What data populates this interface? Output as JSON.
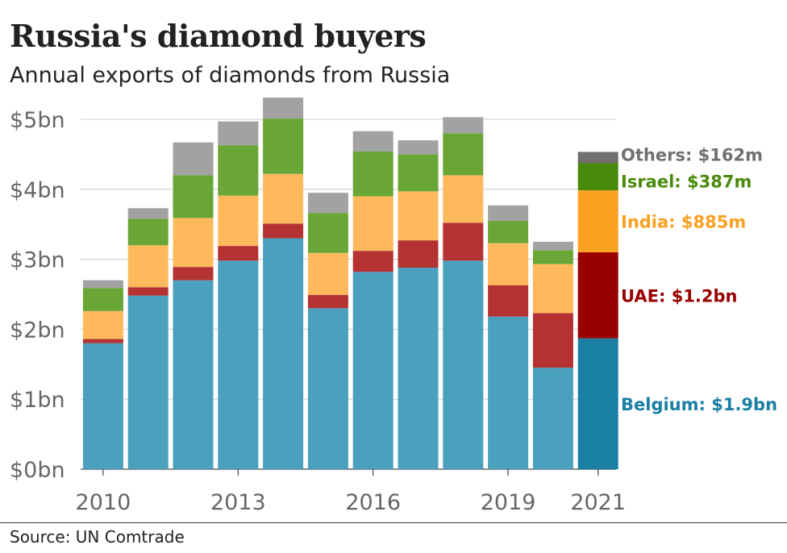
{
  "title": "Russia's diamond buyers",
  "subtitle": "Annual exports of diamonds from Russia",
  "source": "Source: UN Comtrade",
  "colors": {
    "Belgium": "#4aa0bd",
    "UAE": "#b43232",
    "India": "#fdb95c",
    "Israel": "#6aa636",
    "Others": "#a2a2a2",
    "Belgium_2021": "#1a7fa5",
    "UAE_2021": "#990000",
    "India_2021": "#fba122",
    "Israel_2021": "#4a8a0a",
    "Others_2021": "#707070"
  },
  "chart_data": {
    "type": "bar",
    "stacked": true,
    "unit": "$bn",
    "categories": [
      "2010",
      "2011",
      "2012",
      "2013",
      "2014",
      "2015",
      "2016",
      "2017",
      "2018",
      "2019",
      "2020",
      "2021"
    ],
    "xtick_labels": [
      "2010",
      "2013",
      "2016",
      "2019",
      "2021"
    ],
    "ytick_labels": [
      "$0bn",
      "$1bn",
      "$2bn",
      "$3bn",
      "$4bn",
      "$5bn"
    ],
    "yticks": [
      0,
      1,
      2,
      3,
      4,
      5
    ],
    "ylim": [
      0,
      5.3
    ],
    "grid": true,
    "legend": "direct labels right of final bar",
    "series": [
      {
        "name": "Belgium",
        "values": [
          1.8,
          2.48,
          2.7,
          2.98,
          3.3,
          2.3,
          2.82,
          2.88,
          2.98,
          2.18,
          1.45,
          1.87
        ]
      },
      {
        "name": "UAE",
        "values": [
          0.06,
          0.12,
          0.19,
          0.21,
          0.21,
          0.19,
          0.3,
          0.39,
          0.54,
          0.45,
          0.78,
          1.23
        ]
      },
      {
        "name": "India",
        "values": [
          0.4,
          0.6,
          0.7,
          0.72,
          0.71,
          0.6,
          0.78,
          0.7,
          0.68,
          0.6,
          0.7,
          0.885
        ]
      },
      {
        "name": "Israel",
        "values": [
          0.33,
          0.38,
          0.61,
          0.72,
          0.79,
          0.57,
          0.64,
          0.53,
          0.6,
          0.32,
          0.2,
          0.387
        ]
      },
      {
        "name": "Others",
        "values": [
          0.11,
          0.15,
          0.47,
          0.34,
          0.3,
          0.29,
          0.29,
          0.2,
          0.23,
          0.22,
          0.12,
          0.162
        ]
      }
    ],
    "annotations": [
      {
        "series": "Others",
        "text": "Others: $162m"
      },
      {
        "series": "Israel",
        "text": "Israel: $387m"
      },
      {
        "series": "India",
        "text": "India: $885m"
      },
      {
        "series": "UAE",
        "text": "UAE: $1.2bn"
      },
      {
        "series": "Belgium",
        "text": "Belgium: $1.9bn"
      }
    ]
  }
}
